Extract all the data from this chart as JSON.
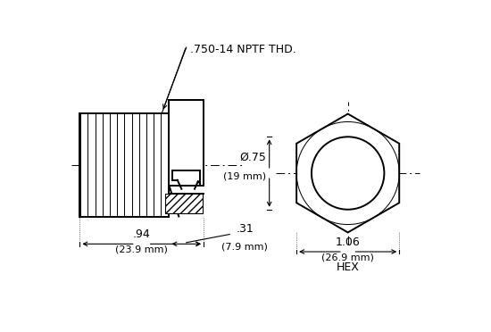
{
  "bg_color": "#ffffff",
  "lc": "#000000",
  "lw": 1.4,
  "lw_thin": 0.8,
  "thread_label": ".750-14 NPTF THD.",
  "dim1_label": "Ø.75",
  "dim1_sub": "(19 mm)",
  "dim2_label": ".31",
  "dim2_sub": "(7.9 mm)",
  "dim3_label": ".94",
  "dim3_sub": "(23.9 mm)",
  "dim4_label": "1.06",
  "dim4_sub": "(26.9 mm)",
  "hex_label": "HEX"
}
